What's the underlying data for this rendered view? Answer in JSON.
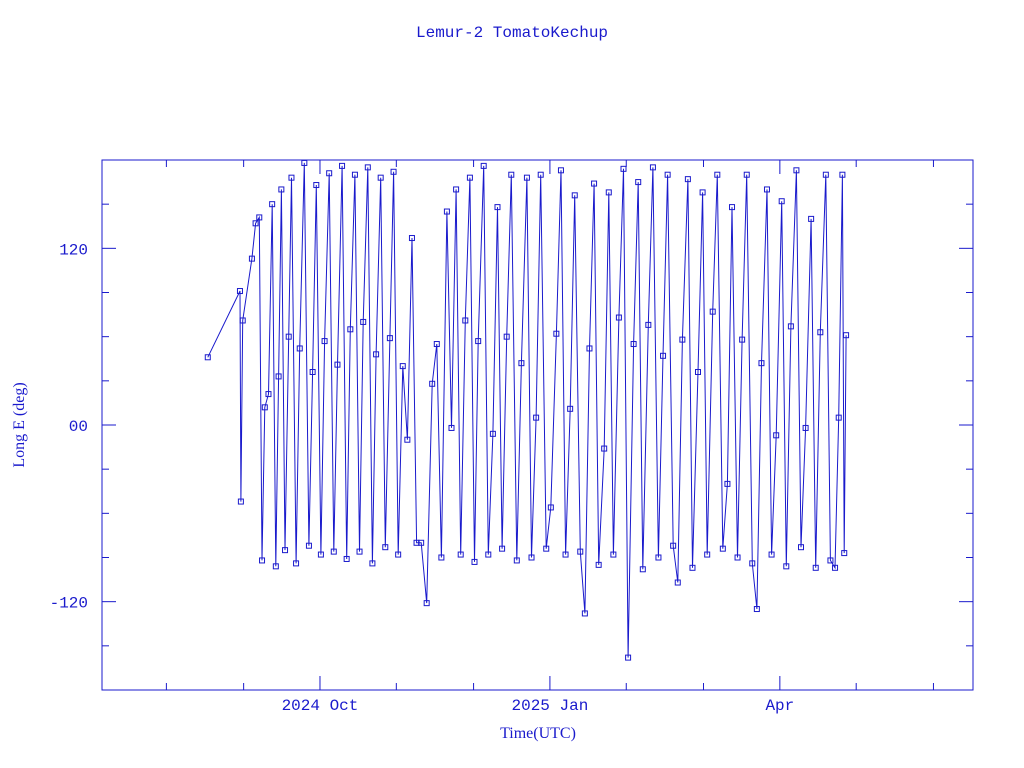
{
  "chart_data": {
    "type": "line",
    "title": "Lemur-2 TomatoKechup",
    "xlabel": "Time(UTC)",
    "ylabel": "Long E (deg)",
    "color": "#1a1acc",
    "xlim": [
      2024.513,
      2025.46
    ],
    "ylim": [
      -180,
      180
    ],
    "xticks": [
      {
        "value": 2024.75,
        "label": "2024 Oct"
      },
      {
        "value": 2025.0,
        "label": "2025 Jan"
      },
      {
        "value": 2025.25,
        "label": "Apr"
      }
    ],
    "xminorticks": [
      2024.583,
      2024.667,
      2024.833,
      2024.917,
      2025.083,
      2025.167,
      2025.333,
      2025.417
    ],
    "yticks": [
      -120,
      {
        "value": 0,
        "label": "00"
      },
      120
    ],
    "yminorticks": [
      -150,
      -90,
      -60,
      -30,
      30,
      60,
      90,
      150
    ],
    "x": [
      2024.628,
      2024.663,
      2024.664,
      2024.666,
      2024.676,
      2024.68,
      2024.684,
      2024.687,
      2024.69,
      2024.694,
      2024.698,
      2024.702,
      2024.705,
      2024.708,
      2024.712,
      2024.716,
      2024.719,
      2024.724,
      2024.728,
      2024.733,
      2024.738,
      2024.742,
      2024.746,
      2024.751,
      2024.755,
      2024.76,
      2024.765,
      2024.769,
      2024.774,
      2024.779,
      2024.783,
      2024.788,
      2024.793,
      2024.797,
      2024.802,
      2024.807,
      2024.811,
      2024.816,
      2024.821,
      2024.826,
      2024.83,
      2024.835,
      2024.84,
      2024.845,
      2024.85,
      2024.855,
      2024.86,
      2024.866,
      2024.872,
      2024.877,
      2024.882,
      2024.888,
      2024.893,
      2024.898,
      2024.903,
      2024.908,
      2024.913,
      2024.918,
      2024.922,
      2024.928,
      2024.933,
      2024.938,
      2024.943,
      2024.948,
      2024.953,
      2024.958,
      2024.964,
      2024.969,
      2024.975,
      2024.98,
      2024.985,
      2024.99,
      2024.996,
      2025.001,
      2025.007,
      2025.012,
      2025.017,
      2025.022,
      2025.027,
      2025.033,
      2025.038,
      2025.043,
      2025.048,
      2025.053,
      2025.059,
      2025.064,
      2025.069,
      2025.075,
      2025.08,
      2025.085,
      2025.091,
      2025.096,
      2025.101,
      2025.107,
      2025.112,
      2025.118,
      2025.123,
      2025.128,
      2025.134,
      2025.139,
      2025.144,
      2025.15,
      2025.155,
      2025.161,
      2025.166,
      2025.171,
      2025.177,
      2025.182,
      2025.188,
      2025.193,
      2025.198,
      2025.204,
      2025.209,
      2025.214,
      2025.22,
      2025.225,
      2025.23,
      2025.236,
      2025.241,
      2025.246,
      2025.252,
      2025.257,
      2025.262,
      2025.268,
      2025.273,
      2025.278,
      2025.284,
      2025.289,
      2025.294,
      2025.3,
      2025.305,
      2025.31,
      2025.314,
      2025.318,
      2025.32,
      2025.322
    ],
    "values": [
      46,
      91,
      -52,
      71,
      113,
      137,
      141,
      -92,
      12,
      21,
      150,
      -96,
      33,
      160,
      -85,
      60,
      168,
      -94,
      52,
      178,
      -82,
      36,
      163,
      -88,
      57,
      171,
      -86,
      41,
      176,
      -91,
      65,
      170,
      -86,
      70,
      175,
      -94,
      48,
      168,
      -83,
      59,
      172,
      -88,
      40,
      -10,
      127,
      -80,
      -80,
      -121,
      28,
      55,
      -90,
      145,
      -2,
      160,
      -88,
      71,
      168,
      -93,
      57,
      176,
      -88,
      -6,
      148,
      -84,
      60,
      170,
      -92,
      42,
      168,
      -90,
      5,
      170,
      -84,
      -56,
      62,
      173,
      -88,
      11,
      156,
      -86,
      -128,
      52,
      164,
      -95,
      -16,
      158,
      -88,
      73,
      174,
      -158,
      55,
      165,
      -98,
      68,
      175,
      -90,
      47,
      170,
      -82,
      -107,
      58,
      167,
      -97,
      36,
      158,
      -88,
      77,
      170,
      -84,
      -40,
      148,
      -90,
      58,
      170,
      -94,
      -125,
      42,
      160,
      -88,
      -7,
      152,
      -96,
      67,
      173,
      -83,
      -2,
      140,
      -97,
      63,
      170,
      -92,
      -97,
      5,
      170,
      -87,
      61
    ]
  }
}
